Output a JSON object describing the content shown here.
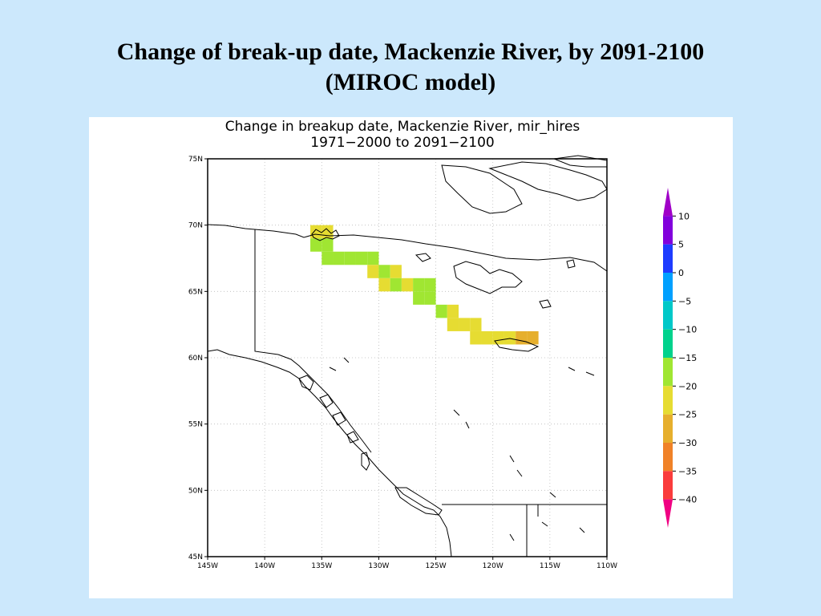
{
  "slide": {
    "title_line1": "Change of break-up date, Mackenzie River, by 2091-2100",
    "title_line2": "(MIROC model)"
  },
  "map": {
    "title_line1": "Change in breakup date, Mackenzie River, mir_hires",
    "title_line2": "1971−2000 to 2091−2100",
    "lon_range": [
      -145,
      -110
    ],
    "lat_range": [
      45,
      75
    ],
    "lon_ticks": [
      "145W",
      "140W",
      "135W",
      "130W",
      "125W",
      "120W",
      "115W",
      "110W"
    ],
    "lat_ticks": [
      "75N",
      "70N",
      "65N",
      "60N",
      "55N",
      "50N",
      "45N"
    ],
    "grid": true,
    "cells": [
      {
        "lon": -135.5,
        "lat": 69.5,
        "value": -22
      },
      {
        "lon": -134.5,
        "lat": 69.5,
        "value": -22
      },
      {
        "lon": -135.5,
        "lat": 68.5,
        "value": -18
      },
      {
        "lon": -134.5,
        "lat": 68.5,
        "value": -18
      },
      {
        "lon": -134.5,
        "lat": 67.5,
        "value": -18
      },
      {
        "lon": -133.5,
        "lat": 67.5,
        "value": -18
      },
      {
        "lon": -132.5,
        "lat": 67.5,
        "value": -18
      },
      {
        "lon": -131.5,
        "lat": 67.5,
        "value": -18
      },
      {
        "lon": -130.5,
        "lat": 67.5,
        "value": -18
      },
      {
        "lon": -130.5,
        "lat": 66.5,
        "value": -22
      },
      {
        "lon": -129.5,
        "lat": 66.5,
        "value": -18
      },
      {
        "lon": -128.5,
        "lat": 66.5,
        "value": -22
      },
      {
        "lon": -129.5,
        "lat": 65.5,
        "value": -22
      },
      {
        "lon": -128.5,
        "lat": 65.5,
        "value": -18
      },
      {
        "lon": -127.5,
        "lat": 65.5,
        "value": -22
      },
      {
        "lon": -126.5,
        "lat": 65.5,
        "value": -18
      },
      {
        "lon": -125.5,
        "lat": 65.5,
        "value": -18
      },
      {
        "lon": -126.5,
        "lat": 64.5,
        "value": -18
      },
      {
        "lon": -125.5,
        "lat": 64.5,
        "value": -18
      },
      {
        "lon": -124.5,
        "lat": 63.5,
        "value": -18
      },
      {
        "lon": -123.5,
        "lat": 63.5,
        "value": -22
      },
      {
        "lon": -123.5,
        "lat": 62.5,
        "value": -22
      },
      {
        "lon": -122.5,
        "lat": 62.5,
        "value": -22
      },
      {
        "lon": -121.5,
        "lat": 62.5,
        "value": -22
      },
      {
        "lon": -121.5,
        "lat": 61.5,
        "value": -22
      },
      {
        "lon": -120.5,
        "lat": 61.5,
        "value": -22
      },
      {
        "lon": -119.5,
        "lat": 61.5,
        "value": -22
      },
      {
        "lon": -118.5,
        "lat": 61.5,
        "value": -22
      },
      {
        "lon": -117.5,
        "lat": 61.5,
        "value": -27
      },
      {
        "lon": -116.5,
        "lat": 61.5,
        "value": -27
      }
    ]
  },
  "colorbar": {
    "labels": [
      "10",
      "5",
      "0",
      "−5",
      "−10",
      "−15",
      "−20",
      "−25",
      "−30",
      "−35",
      "−40"
    ],
    "bands": [
      {
        "from": 10,
        "color": "#a000c8"
      },
      {
        "from": 5,
        "color": "#8200dc"
      },
      {
        "from": 0,
        "color": "#1e3cff"
      },
      {
        "from": -5,
        "color": "#00a0ff"
      },
      {
        "from": -10,
        "color": "#00c8c8"
      },
      {
        "from": -15,
        "color": "#00d28c"
      },
      {
        "from": -20,
        "color": "#a0e632"
      },
      {
        "from": -25,
        "color": "#e6dc32"
      },
      {
        "from": -30,
        "color": "#e6af2d"
      },
      {
        "from": -35,
        "color": "#f08228"
      },
      {
        "from": -40,
        "color": "#fa3c3c"
      },
      {
        "from": -45,
        "color": "#f00082"
      }
    ]
  }
}
